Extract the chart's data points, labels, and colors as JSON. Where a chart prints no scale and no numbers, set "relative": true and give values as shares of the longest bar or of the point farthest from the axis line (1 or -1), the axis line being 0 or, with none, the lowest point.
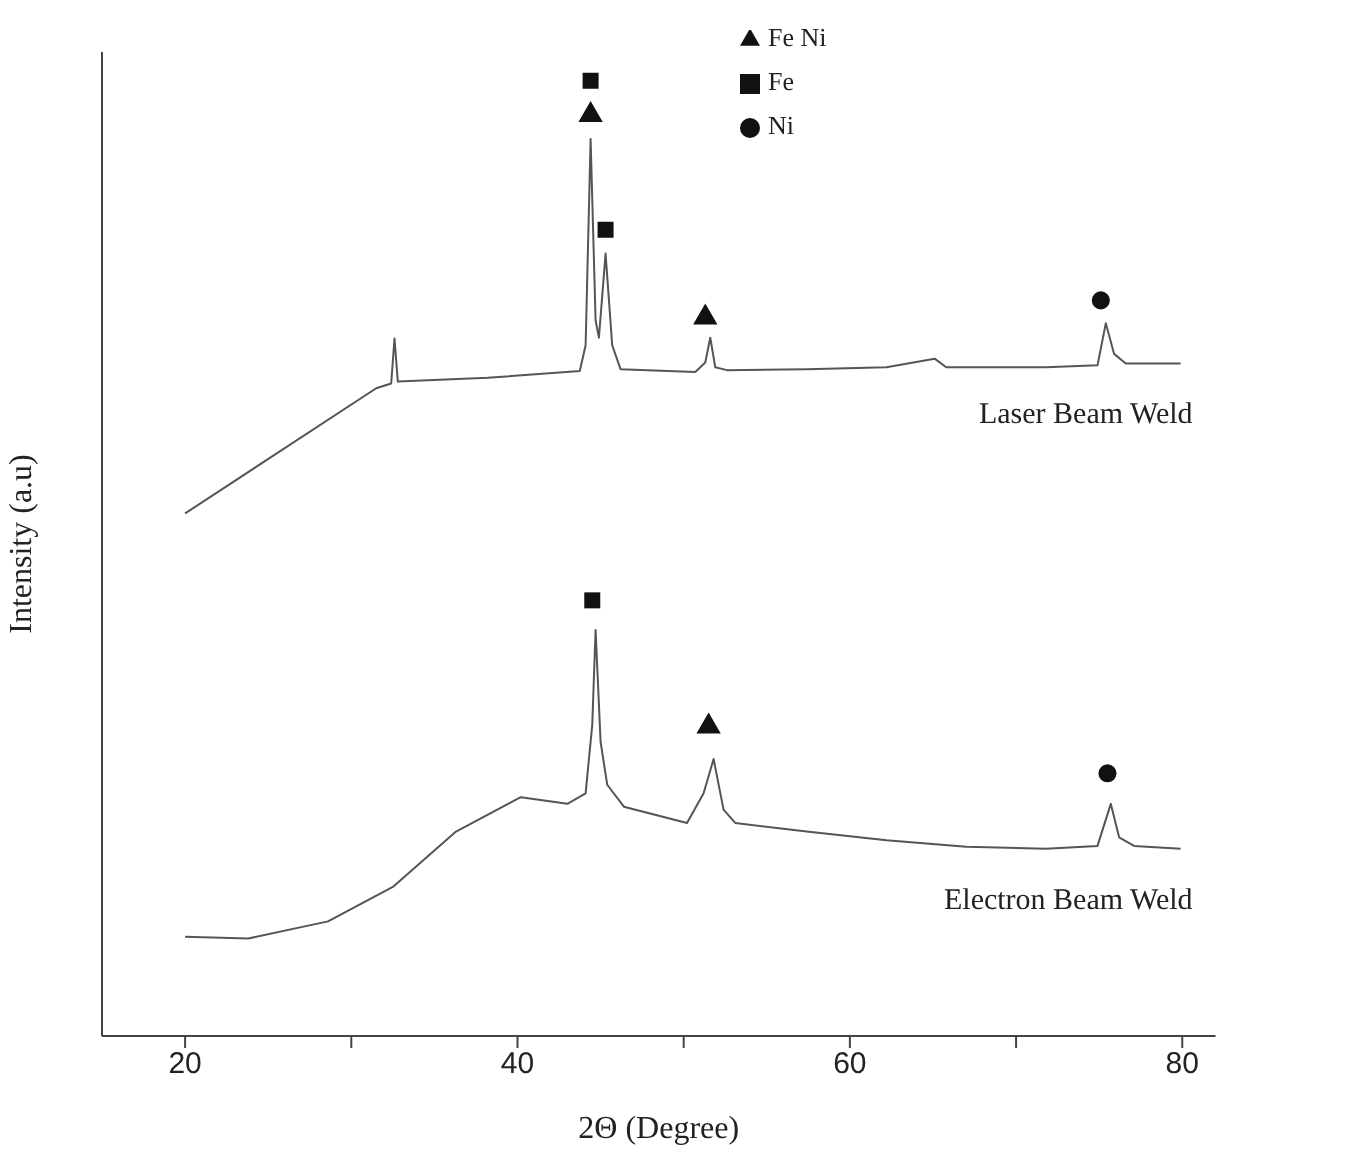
{
  "chart_data": {
    "type": "line",
    "relative": true,
    "xlabel": "2Θ (Degree)",
    "ylabel": "Intensity (a.u)",
    "xlim": [
      15,
      82
    ],
    "xticks": [
      20,
      {
        "value": 30,
        "label": null
      },
      40,
      {
        "value": 50,
        "label": null
      },
      60,
      {
        "value": 70,
        "label": null
      },
      80
    ],
    "grid": false,
    "legend": "top right",
    "line_style": "solid",
    "series": [
      {
        "name": "Laser Beam Weld",
        "color": "#555555",
        "marker": "none",
        "x": [
          20,
          31.5,
          32.4,
          32.6,
          32.8,
          38.2,
          43.75,
          44.1,
          44.4,
          44.7,
          44.9,
          45.3,
          45.7,
          46.2,
          50.7,
          51.3,
          51.6,
          51.9,
          52.6,
          57.4,
          62.2,
          65.1,
          65.8,
          71.8,
          74.9,
          75.4,
          75.9,
          76.6,
          79.9
        ],
        "values": [
          0.547,
          0.678,
          0.683,
          0.73,
          0.685,
          0.689,
          0.696,
          0.723,
          0.939,
          0.749,
          0.731,
          0.819,
          0.723,
          0.698,
          0.695,
          0.705,
          0.731,
          0.7,
          0.697,
          0.698,
          0.7,
          0.709,
          0.7,
          0.7,
          0.702,
          0.746,
          0.714,
          0.704,
          0.704
        ]
      },
      {
        "name": "Electron Beam Weld",
        "color": "#555555",
        "marker": "none",
        "x": [
          20,
          23.8,
          28.6,
          32.5,
          36.3,
          40.2,
          43.0,
          44.1,
          44.5,
          44.7,
          45.0,
          45.4,
          46.4,
          50.2,
          51.2,
          51.8,
          52.4,
          53.1,
          57.4,
          62.2,
          67.0,
          71.8,
          74.9,
          75.7,
          76.2,
          77.1,
          79.9
        ],
        "values": [
          0.104,
          0.102,
          0.12,
          0.156,
          0.214,
          0.25,
          0.243,
          0.254,
          0.326,
          0.425,
          0.308,
          0.263,
          0.24,
          0.223,
          0.254,
          0.29,
          0.237,
          0.223,
          0.214,
          0.205,
          0.198,
          0.196,
          0.199,
          0.243,
          0.208,
          0.199,
          0.196
        ]
      },
      {
        "name": "Fe Ni",
        "type": "scatter",
        "color": "#111111",
        "marker": "triangle",
        "x": [
          44.4,
          51.3,
          51.5
        ],
        "values": [
          0.964,
          0.752,
          0.324
        ]
      },
      {
        "name": "Fe",
        "type": "scatter",
        "color": "#111111",
        "marker": "square",
        "x": [
          44.4,
          45.3,
          44.5
        ],
        "values": [
          1.0,
          0.844,
          0.456
        ]
      },
      {
        "name": "Ni",
        "type": "scatter",
        "color": "#111111",
        "marker": "circle",
        "x": [
          75.1,
          75.5
        ],
        "values": [
          0.77,
          0.275
        ]
      }
    ]
  }
}
